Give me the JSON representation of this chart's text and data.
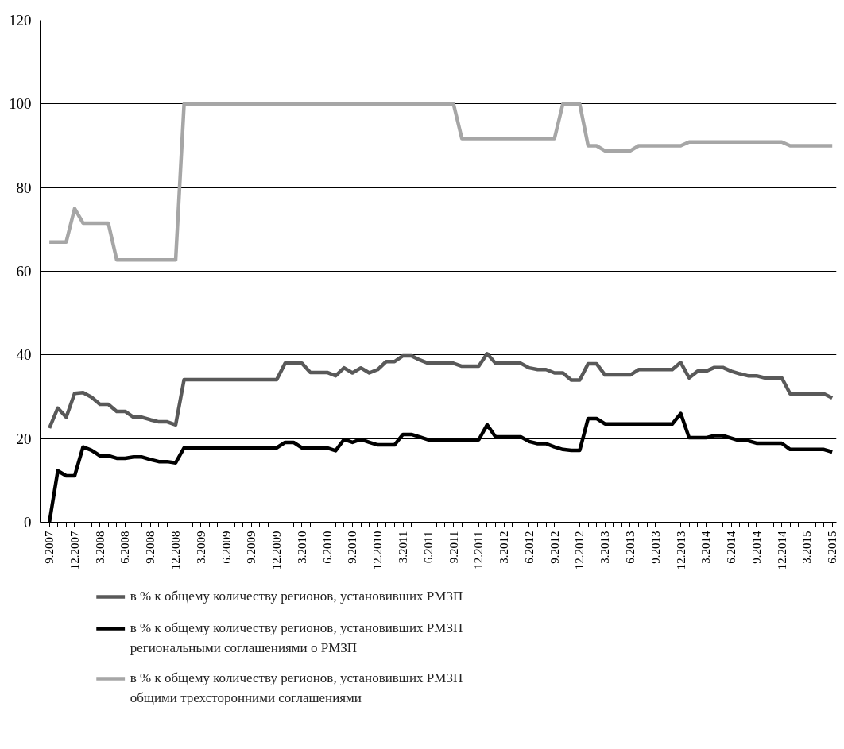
{
  "chart_data": {
    "type": "line",
    "categories": [
      "9.2007",
      null,
      null,
      "12.2007",
      null,
      null,
      "3.2008",
      null,
      null,
      "6.2008",
      null,
      null,
      "9.2008",
      null,
      null,
      "12.2008",
      null,
      null,
      "3.2009",
      null,
      null,
      "6.2009",
      null,
      null,
      "9.2009",
      null,
      null,
      "12.2009",
      null,
      null,
      "3.2010",
      null,
      null,
      "6.2010",
      null,
      null,
      "9.2010",
      null,
      null,
      "12.2010",
      null,
      null,
      "3.2011",
      null,
      null,
      "6.2011",
      null,
      null,
      "9.2011",
      null,
      null,
      "12.2011",
      null,
      null,
      "3.2012",
      null,
      null,
      "6.2012",
      null,
      null,
      "9.2012",
      null,
      null,
      "12.2012",
      null,
      null,
      "3.2013",
      null,
      null,
      "6.2013",
      null,
      null,
      "9.2013",
      null,
      null,
      "12.2013",
      null,
      null,
      "3.2014",
      null,
      null,
      "6.2014",
      null,
      null,
      "9.2014",
      null,
      null,
      "12.2014",
      null,
      null,
      "3.2015",
      null,
      null,
      "6.2015"
    ],
    "series": [
      {
        "name": "в % к общему количеству регионов, установивших РМЗП",
        "color": "#595959",
        "values": [
          22.5,
          27.3,
          25.1,
          30.8,
          31.0,
          29.9,
          28.2,
          28.2,
          26.5,
          26.5,
          25.1,
          25.1,
          24.5,
          24.0,
          24.0,
          23.3,
          34.1,
          34.1,
          34.1,
          34.1,
          34.1,
          34.1,
          34.1,
          34.1,
          34.1,
          34.1,
          34.1,
          34.1,
          38.0,
          38.0,
          38.0,
          35.8,
          35.8,
          35.8,
          35.0,
          36.9,
          35.7,
          36.9,
          35.7,
          36.5,
          38.4,
          38.4,
          39.8,
          39.8,
          38.8,
          38.0,
          38.0,
          38.0,
          38.0,
          37.3,
          37.3,
          37.3,
          40.3,
          38.0,
          38.0,
          38.0,
          38.0,
          36.9,
          36.5,
          36.5,
          35.7,
          35.7,
          34.0,
          34.0,
          37.9,
          37.9,
          35.2,
          35.2,
          35.2,
          35.2,
          36.5,
          36.5,
          36.5,
          36.5,
          36.5,
          38.2,
          34.5,
          36.1,
          36.1,
          37.0,
          37.0,
          36.1,
          35.5,
          35.0,
          35.0,
          34.5,
          34.5,
          34.5,
          30.7,
          30.7,
          30.7,
          30.7,
          30.7,
          29.7
        ]
      },
      {
        "name": "в % к общему количеству регионов, установивших РМЗП региональными соглашениями о РМЗП",
        "color": "#000000",
        "values": [
          0,
          12.3,
          11.1,
          11.1,
          18.0,
          17.2,
          15.9,
          15.9,
          15.3,
          15.3,
          15.6,
          15.6,
          15.0,
          14.5,
          14.5,
          14.2,
          17.8,
          17.8,
          17.8,
          17.8,
          17.8,
          17.8,
          17.8,
          17.8,
          17.8,
          17.8,
          17.8,
          17.8,
          19.1,
          19.1,
          17.8,
          17.8,
          17.8,
          17.8,
          17.1,
          19.8,
          19.1,
          19.8,
          19.1,
          18.5,
          18.5,
          18.5,
          21.0,
          21.0,
          20.4,
          19.7,
          19.7,
          19.7,
          19.7,
          19.7,
          19.7,
          19.7,
          23.3,
          20.4,
          20.4,
          20.4,
          20.4,
          19.3,
          18.8,
          18.8,
          18.0,
          17.4,
          17.2,
          17.2,
          24.8,
          24.8,
          23.5,
          23.5,
          23.5,
          23.5,
          23.5,
          23.5,
          23.5,
          23.5,
          23.5,
          26.0,
          20.2,
          20.2,
          20.2,
          20.7,
          20.7,
          20.1,
          19.5,
          19.5,
          18.9,
          18.9,
          18.9,
          18.9,
          17.4,
          17.4,
          17.4,
          17.4,
          17.4,
          16.8
        ]
      },
      {
        "name": "в % к общему количеству регионов, установивших РМЗП общими трехсторонними соглашениями",
        "color": "#a6a6a6",
        "values": [
          67,
          67,
          67,
          75,
          71.5,
          71.5,
          71.5,
          71.5,
          62.7,
          62.7,
          62.7,
          62.7,
          62.7,
          62.7,
          62.7,
          62.7,
          100,
          100,
          100,
          100,
          100,
          100,
          100,
          100,
          100,
          100,
          100,
          100,
          100,
          100,
          100,
          100,
          100,
          100,
          100,
          100,
          100,
          100,
          100,
          100,
          100,
          100,
          100,
          100,
          100,
          100,
          100,
          100,
          100,
          91.7,
          91.7,
          91.7,
          91.7,
          91.7,
          91.7,
          91.7,
          91.7,
          91.7,
          91.7,
          91.7,
          91.7,
          100,
          100,
          100,
          90,
          90,
          88.8,
          88.8,
          88.8,
          88.8,
          90,
          90,
          90,
          90,
          90,
          90,
          90.9,
          90.9,
          90.9,
          90.9,
          90.9,
          90.9,
          90.9,
          90.9,
          90.9,
          90.9,
          90.9,
          90.9,
          90,
          90,
          90,
          90,
          90,
          90
        ]
      }
    ],
    "ylim": [
      0,
      120
    ],
    "yticks": [
      0,
      20,
      40,
      60,
      80,
      100,
      120
    ],
    "grid": "y",
    "legend": "bottom",
    "marker": "none",
    "line_style": "solid"
  }
}
